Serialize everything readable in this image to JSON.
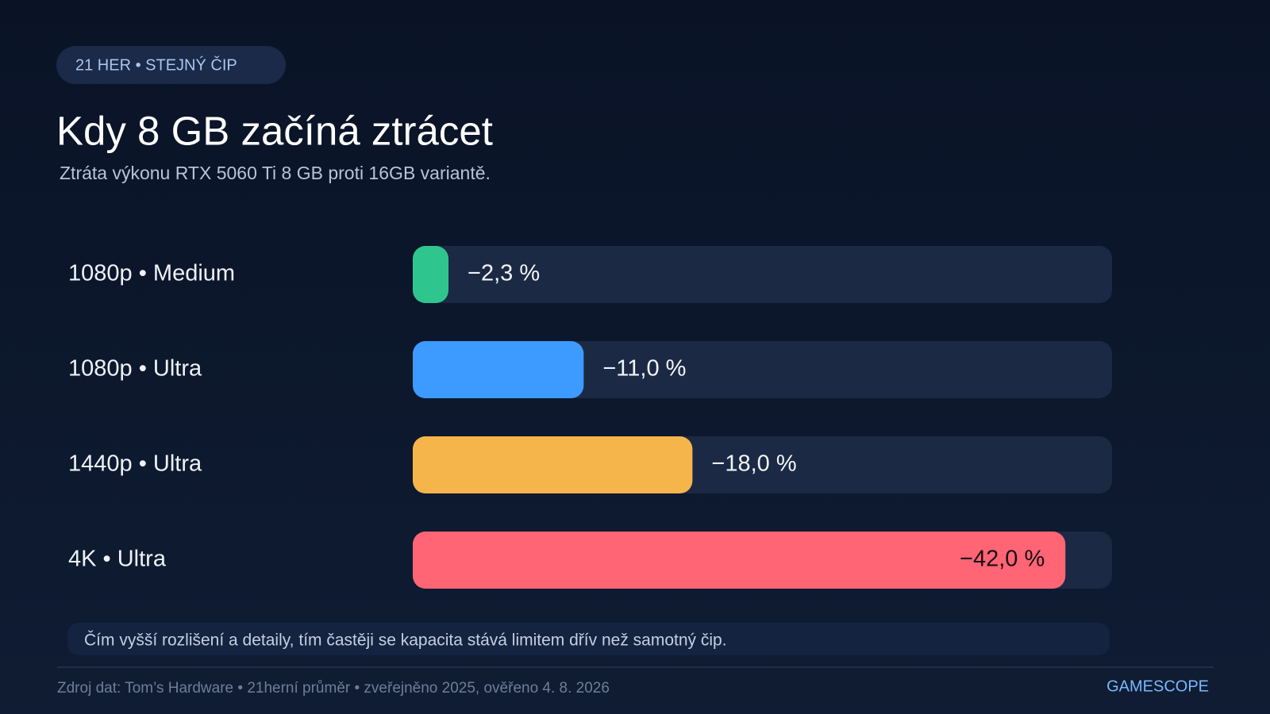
{
  "chart_data": {
    "type": "bar",
    "orientation": "horizontal",
    "badge": "21 HER • STEJNÝ ČIP",
    "title": "Kdy 8 GB začíná ztrácet",
    "subtitle": "Ztráta výkonu RTX 5060 Ti 8 GB proti 16GB variantě.",
    "categories": [
      "1080p • Medium",
      "1080p • Ultra",
      "1440p • Ultra",
      "4K • Ultra"
    ],
    "values": [
      -2.3,
      -11.0,
      -18.0,
      -42.0
    ],
    "value_labels": [
      "−2,3 %",
      "−11,0 %",
      "−18,0 %",
      "−42,0 %"
    ],
    "colors": [
      "#2ec68e",
      "#3d9bff",
      "#f5b54a",
      "#ff6574"
    ],
    "xlim": [
      0,
      -45
    ],
    "note": "Čím vyšší rozlišení a detaily, tím častěji se kapacita stává limitem dřív než samotný čip.",
    "source": "Zdroj dat: Tom’s Hardware • 21herní průměr • zveřejněno 2025, ověřeno 4. 8. 2026",
    "brand": "GAMESCOPE"
  }
}
